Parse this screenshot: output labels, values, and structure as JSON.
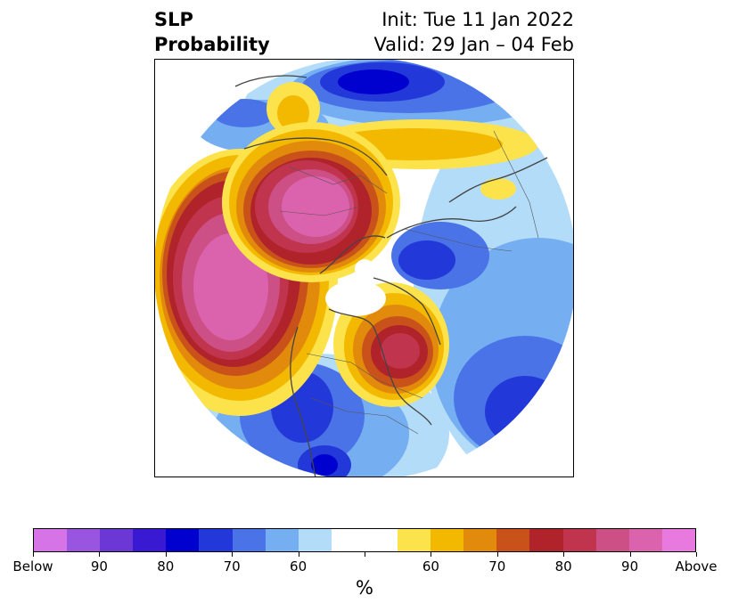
{
  "header": {
    "title_line1": "SLP",
    "title_line2": "Probability",
    "init_text": "Init: Tue 11 Jan 2022",
    "valid_text": "Valid: 29 Jan – 04 Feb"
  },
  "colorbar": {
    "colors": [
      "#d673e6",
      "#9a55e0",
      "#6b38d6",
      "#3a19d3",
      "#0000cf",
      "#2338d9",
      "#4a73e8",
      "#76aef2",
      "#b3dcf9",
      "#ffffff",
      "#ffffff",
      "#fde34b",
      "#f3b800",
      "#e28a0c",
      "#c9521a",
      "#b0232a",
      "#c1344e",
      "#cc4f86",
      "#db62ac",
      "#e879de"
    ],
    "labels": [
      "Below",
      "90",
      "80",
      "70",
      "60",
      "",
      "60",
      "70",
      "80",
      "90",
      "Above"
    ],
    "unit": "%"
  },
  "map": {
    "palette": {
      "blue_light": "#b3dcf9",
      "blue_mid": "#76aef2",
      "blue_med": "#4a73e8",
      "blue_deep": "#2338d9",
      "blue_darkest": "#0000cf",
      "yellow": "#fde34b",
      "gold": "#f3b800",
      "orange": "#e28a0c",
      "red_orange": "#c9521a",
      "red": "#b0232a",
      "crimson": "#c1344e",
      "rose": "#cc4f86",
      "pink": "#db62ac"
    },
    "border_color": "#444444"
  }
}
